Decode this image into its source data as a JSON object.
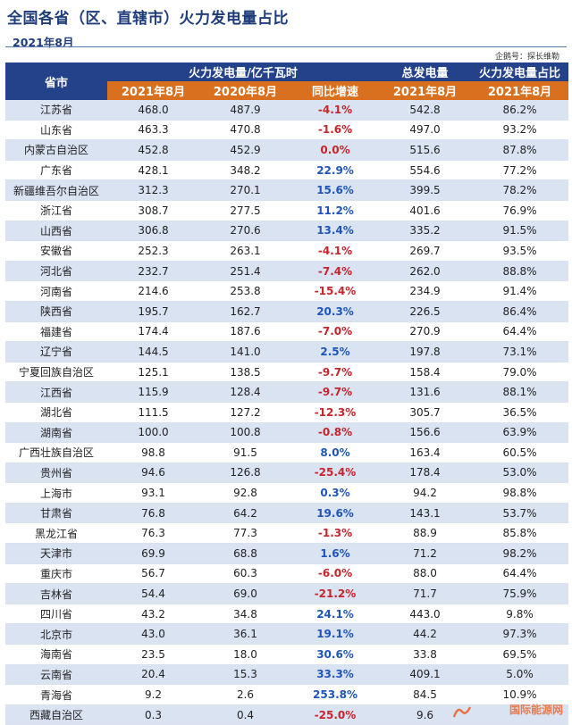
{
  "title": "全国各省（区、直辖市）火力发电量占比",
  "subtitle": "2021年8月",
  "source": "企鹅号：探长维勒",
  "watermark": "国际能源网",
  "header": {
    "province": "省市",
    "group1": "火力发电量/亿千瓦时",
    "group2": "总发电量",
    "group3": "火力发电量占比",
    "col_2021": "2021年8月",
    "col_2020": "2020年8月",
    "col_yoy": "同比增速",
    "col_total": "2021年8月",
    "col_share": "2021年8月"
  },
  "colors": {
    "header_blue": "#23428a",
    "header_orange": "#d9701f",
    "negative": "#c8242b",
    "positive": "#1f55b8",
    "stripe": "#d9e3f2"
  },
  "rows": [
    {
      "province": "江苏省",
      "y2021": "468.0",
      "y2020": "487.9",
      "yoy": "-4.1%",
      "total": "542.8",
      "share": "86.2%"
    },
    {
      "province": "山东省",
      "y2021": "463.3",
      "y2020": "470.8",
      "yoy": "-1.6%",
      "total": "497.0",
      "share": "93.2%"
    },
    {
      "province": "内蒙古自治区",
      "y2021": "452.8",
      "y2020": "452.9",
      "yoy": "0.0%",
      "total": "515.6",
      "share": "87.8%"
    },
    {
      "province": "广东省",
      "y2021": "428.1",
      "y2020": "348.2",
      "yoy": "22.9%",
      "total": "554.6",
      "share": "77.2%"
    },
    {
      "province": "新疆维吾尔自治区",
      "y2021": "312.3",
      "y2020": "270.1",
      "yoy": "15.6%",
      "total": "399.5",
      "share": "78.2%"
    },
    {
      "province": "浙江省",
      "y2021": "308.7",
      "y2020": "277.5",
      "yoy": "11.2%",
      "total": "401.6",
      "share": "76.9%"
    },
    {
      "province": "山西省",
      "y2021": "306.8",
      "y2020": "270.6",
      "yoy": "13.4%",
      "total": "335.2",
      "share": "91.5%"
    },
    {
      "province": "安徽省",
      "y2021": "252.3",
      "y2020": "263.1",
      "yoy": "-4.1%",
      "total": "269.7",
      "share": "93.5%"
    },
    {
      "province": "河北省",
      "y2021": "232.7",
      "y2020": "251.4",
      "yoy": "-7.4%",
      "total": "262.0",
      "share": "88.8%"
    },
    {
      "province": "河南省",
      "y2021": "214.6",
      "y2020": "253.8",
      "yoy": "-15.4%",
      "total": "234.9",
      "share": "91.4%"
    },
    {
      "province": "陕西省",
      "y2021": "195.7",
      "y2020": "162.7",
      "yoy": "20.3%",
      "total": "226.5",
      "share": "86.4%"
    },
    {
      "province": "福建省",
      "y2021": "174.4",
      "y2020": "187.6",
      "yoy": "-7.0%",
      "total": "270.9",
      "share": "64.4%"
    },
    {
      "province": "辽宁省",
      "y2021": "144.5",
      "y2020": "141.0",
      "yoy": "2.5%",
      "total": "197.8",
      "share": "73.1%"
    },
    {
      "province": "宁夏回族自治区",
      "y2021": "125.1",
      "y2020": "138.5",
      "yoy": "-9.7%",
      "total": "158.4",
      "share": "79.0%"
    },
    {
      "province": "江西省",
      "y2021": "115.9",
      "y2020": "128.4",
      "yoy": "-9.7%",
      "total": "131.6",
      "share": "88.1%"
    },
    {
      "province": "湖北省",
      "y2021": "111.5",
      "y2020": "127.2",
      "yoy": "-12.3%",
      "total": "305.7",
      "share": "36.5%"
    },
    {
      "province": "湖南省",
      "y2021": "100.0",
      "y2020": "100.8",
      "yoy": "-0.8%",
      "total": "156.6",
      "share": "63.9%"
    },
    {
      "province": "广西壮族自治区",
      "y2021": "98.8",
      "y2020": "91.5",
      "yoy": "8.0%",
      "total": "163.4",
      "share": "60.5%"
    },
    {
      "province": "贵州省",
      "y2021": "94.6",
      "y2020": "126.8",
      "yoy": "-25.4%",
      "total": "178.4",
      "share": "53.0%"
    },
    {
      "province": "上海市",
      "y2021": "93.1",
      "y2020": "92.8",
      "yoy": "0.3%",
      "total": "94.2",
      "share": "98.8%"
    },
    {
      "province": "甘肃省",
      "y2021": "76.8",
      "y2020": "64.2",
      "yoy": "19.6%",
      "total": "143.1",
      "share": "53.7%"
    },
    {
      "province": "黑龙江省",
      "y2021": "76.3",
      "y2020": "77.3",
      "yoy": "-1.3%",
      "total": "88.9",
      "share": "85.8%"
    },
    {
      "province": "天津市",
      "y2021": "69.9",
      "y2020": "68.8",
      "yoy": "1.6%",
      "total": "71.2",
      "share": "98.2%"
    },
    {
      "province": "重庆市",
      "y2021": "56.7",
      "y2020": "60.3",
      "yoy": "-6.0%",
      "total": "88.0",
      "share": "64.4%"
    },
    {
      "province": "吉林省",
      "y2021": "54.4",
      "y2020": "69.0",
      "yoy": "-21.2%",
      "total": "71.7",
      "share": "75.9%"
    },
    {
      "province": "四川省",
      "y2021": "43.2",
      "y2020": "34.8",
      "yoy": "24.1%",
      "total": "443.0",
      "share": "9.8%"
    },
    {
      "province": "北京市",
      "y2021": "43.0",
      "y2020": "36.1",
      "yoy": "19.1%",
      "total": "44.2",
      "share": "97.3%"
    },
    {
      "province": "海南省",
      "y2021": "23.5",
      "y2020": "18.0",
      "yoy": "30.6%",
      "total": "33.8",
      "share": "69.5%"
    },
    {
      "province": "云南省",
      "y2021": "20.4",
      "y2020": "15.3",
      "yoy": "33.3%",
      "total": "409.1",
      "share": "5.0%"
    },
    {
      "province": "青海省",
      "y2021": "9.2",
      "y2020": "2.6",
      "yoy": "253.8%",
      "total": "84.5",
      "share": "10.9%"
    },
    {
      "province": "西藏自治区",
      "y2021": "0.3",
      "y2020": "0.4",
      "yoy": "-25.0%",
      "total": "9.6",
      "share": ""
    }
  ]
}
